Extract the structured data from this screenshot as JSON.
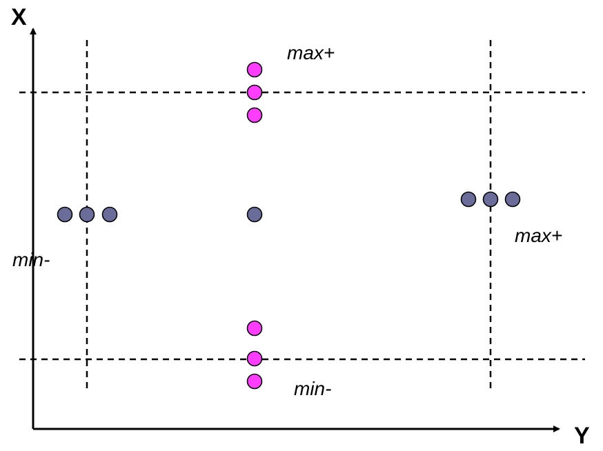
{
  "axes": {
    "vertical_label": "X",
    "horizontal_label": "Y"
  },
  "labels": {
    "center_top": "max+",
    "center_bottom": "min-",
    "left_side": "min-",
    "right_side": "max+"
  },
  "colors": {
    "magenta_point": "#ff3dff",
    "slate_point": "#6a6c9a",
    "line": "#000000"
  }
}
